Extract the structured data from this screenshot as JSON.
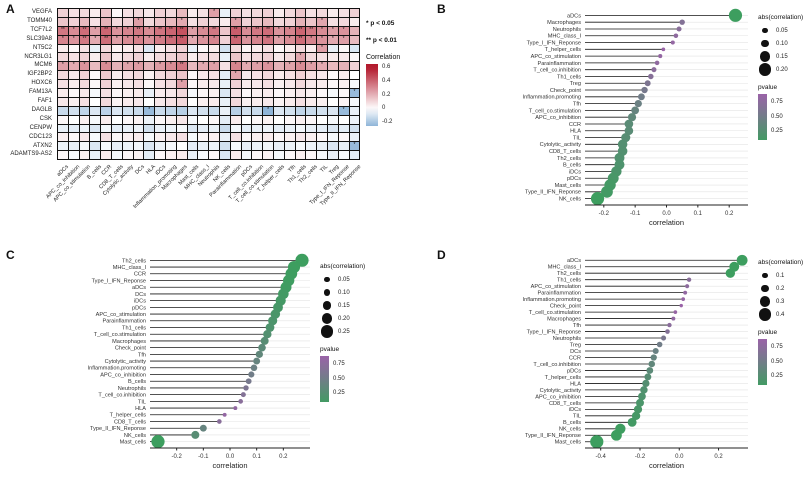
{
  "figure": {
    "panel_labels": {
      "a": "A",
      "b": "B",
      "c": "C",
      "d": "D"
    }
  },
  "chart_data": [
    {
      "id": "A",
      "type": "heatmap",
      "genes": [
        "VEGFA",
        "TOMM40",
        "TCF7L2",
        "SLC39A8",
        "NT5C2",
        "NCR3LG1",
        "MCM6",
        "IGF2BP2",
        "HOXC6",
        "FAM13A",
        "FAF1",
        "DAGLB",
        "CSK",
        "CENPW",
        "CDC123",
        "ATXN2",
        "ADAMTS9-AS2"
      ],
      "columns": [
        "aDCs",
        "APC_co_inhibition",
        "APC_co_stimulation",
        "B_cells",
        "CCR",
        "CD8_T_cells",
        "Cytolytic_activity",
        "DCs",
        "HLA",
        "iDCs",
        "Inflammation_promoting",
        "Macrophages",
        "Mast_cells",
        "MHC_class_I",
        "Neutrophils",
        "NK_cells",
        "Parainflammation",
        "pDCs",
        "T_cell_co.inhibition",
        "T_cell_co.stimulation",
        "T_helper_cells",
        "Tfh",
        "Th1_cells",
        "Th2_cells",
        "TIL",
        "Treg",
        "Type_I_IFN_Reponse",
        "Type_II_IFN_Reponse"
      ],
      "values": [
        [
          0.12,
          0.08,
          0.1,
          0.05,
          0.15,
          0.02,
          0.08,
          0.1,
          0.06,
          0.12,
          0.1,
          0.18,
          0.05,
          0.08,
          0.25,
          -0.05,
          0.12,
          0.08,
          0.1,
          0.12,
          0.05,
          0.1,
          0.15,
          0.08,
          0.1,
          0.05,
          0.08,
          0.12
        ],
        [
          0.15,
          0.12,
          0.18,
          0.08,
          0.2,
          0.1,
          0.12,
          0.25,
          0.1,
          0.15,
          0.18,
          0.22,
          0.08,
          0.12,
          0.1,
          0.05,
          0.25,
          0.12,
          0.15,
          0.18,
          0.1,
          0.12,
          0.2,
          0.15,
          0.23,
          0.08,
          0.1,
          0.05
        ],
        [
          0.35,
          0.3,
          0.38,
          0.25,
          0.4,
          0.28,
          0.32,
          0.35,
          0.3,
          0.36,
          0.4,
          0.45,
          0.25,
          0.3,
          0.35,
          0.15,
          0.42,
          0.3,
          0.35,
          0.38,
          0.28,
          0.32,
          0.4,
          0.35,
          0.3,
          0.25,
          0.28,
          0.2
        ],
        [
          0.32,
          0.28,
          0.35,
          0.22,
          0.38,
          0.25,
          0.3,
          0.33,
          0.28,
          0.34,
          0.38,
          0.42,
          0.22,
          0.28,
          0.32,
          0.12,
          0.4,
          0.28,
          0.32,
          0.36,
          0.25,
          0.3,
          0.38,
          0.32,
          0.28,
          0.22,
          0.25,
          0.18
        ],
        [
          0.05,
          0.02,
          0.08,
          -0.05,
          0.1,
          0.03,
          0.05,
          0.08,
          -0.08,
          0.05,
          0.08,
          0.12,
          -0.05,
          0.02,
          0.05,
          -0.1,
          0.1,
          0.03,
          0.05,
          0.08,
          0.02,
          0.05,
          0.1,
          0.05,
          0.25,
          -0.05,
          0.02,
          -0.08
        ],
        [
          0.1,
          0.08,
          0.12,
          0.05,
          0.15,
          0.06,
          0.1,
          0.12,
          0.05,
          0.1,
          0.12,
          0.15,
          0.05,
          0.08,
          0.1,
          -0.05,
          0.15,
          0.08,
          0.1,
          0.12,
          0.06,
          0.1,
          0.23,
          0.1,
          0.08,
          0.05,
          0.06,
          0.02
        ],
        [
          0.25,
          0.22,
          0.28,
          0.18,
          0.3,
          0.2,
          0.24,
          0.26,
          0.2,
          0.26,
          0.3,
          0.35,
          0.18,
          0.22,
          0.25,
          0.08,
          0.32,
          0.22,
          0.25,
          0.28,
          0.2,
          0.24,
          0.3,
          0.25,
          0.22,
          0.18,
          0.2,
          0.12
        ],
        [
          0.1,
          0.06,
          0.12,
          0.02,
          0.14,
          0.05,
          0.08,
          0.1,
          0.04,
          0.1,
          0.12,
          0.15,
          0.02,
          0.06,
          0.08,
          -0.06,
          0.23,
          0.06,
          0.08,
          0.1,
          0.05,
          0.08,
          0.12,
          0.08,
          0.06,
          0.02,
          0.05,
          0.0
        ],
        [
          0.08,
          0.05,
          0.1,
          0.02,
          0.12,
          0.04,
          0.06,
          0.08,
          0.02,
          0.08,
          0.1,
          0.25,
          0.02,
          0.05,
          0.06,
          -0.05,
          0.12,
          0.05,
          0.06,
          0.08,
          0.04,
          0.06,
          0.1,
          0.06,
          0.05,
          0.02,
          0.04,
          -0.02
        ],
        [
          0.05,
          0.02,
          0.06,
          -0.02,
          0.08,
          0.02,
          0.04,
          0.05,
          -0.05,
          0.05,
          0.06,
          0.1,
          -0.02,
          0.02,
          0.04,
          -0.08,
          0.08,
          0.02,
          0.04,
          0.05,
          0.02,
          0.04,
          0.06,
          0.04,
          0.02,
          -0.02,
          0.02,
          -0.23
        ],
        [
          0.06,
          0.04,
          0.08,
          0.0,
          0.1,
          0.03,
          0.05,
          0.06,
          0.0,
          0.06,
          0.08,
          0.1,
          0.0,
          0.04,
          0.05,
          -0.05,
          0.1,
          0.04,
          0.05,
          0.06,
          0.03,
          0.05,
          0.08,
          0.05,
          0.04,
          0.0,
          0.03,
          -0.02
        ],
        [
          -0.12,
          -0.1,
          -0.14,
          -0.08,
          -0.15,
          -0.08,
          -0.1,
          -0.12,
          -0.23,
          -0.12,
          -0.14,
          -0.16,
          -0.08,
          -0.1,
          -0.12,
          -0.05,
          -0.16,
          -0.1,
          -0.12,
          -0.25,
          -0.08,
          -0.1,
          -0.14,
          -0.12,
          -0.1,
          -0.08,
          -0.23,
          -0.05
        ],
        [
          0.02,
          0.0,
          0.04,
          -0.02,
          0.05,
          0.0,
          0.02,
          0.03,
          -0.04,
          0.02,
          0.04,
          0.06,
          -0.02,
          0.0,
          0.02,
          -0.06,
          0.05,
          0.0,
          0.02,
          0.03,
          0.0,
          0.02,
          0.04,
          0.02,
          0.0,
          -0.02,
          0.0,
          -0.04
        ],
        [
          -0.05,
          -0.06,
          -0.04,
          -0.08,
          -0.03,
          -0.06,
          -0.05,
          -0.04,
          -0.1,
          -0.05,
          -0.04,
          -0.02,
          -0.08,
          -0.06,
          -0.05,
          -0.12,
          -0.03,
          -0.06,
          -0.05,
          -0.04,
          -0.06,
          -0.05,
          -0.03,
          -0.05,
          -0.06,
          -0.08,
          -0.06,
          -0.1
        ],
        [
          0.04,
          0.02,
          0.06,
          -0.02,
          0.08,
          0.02,
          0.04,
          0.05,
          -0.02,
          0.04,
          0.06,
          0.08,
          -0.02,
          0.02,
          0.04,
          -0.05,
          0.08,
          0.02,
          0.04,
          0.05,
          0.02,
          0.04,
          0.06,
          0.04,
          0.02,
          -0.02,
          0.02,
          -0.05
        ],
        [
          -0.04,
          -0.05,
          -0.02,
          -0.08,
          -0.02,
          -0.05,
          -0.04,
          -0.03,
          -0.08,
          -0.04,
          -0.02,
          0.0,
          -0.06,
          -0.05,
          -0.04,
          -0.1,
          -0.02,
          -0.05,
          -0.04,
          -0.03,
          -0.05,
          -0.04,
          -0.02,
          -0.04,
          -0.05,
          -0.08,
          -0.05,
          -0.23
        ],
        [
          0.02,
          -0.02,
          0.04,
          -0.05,
          0.05,
          -0.02,
          0.02,
          0.03,
          -0.06,
          0.02,
          0.04,
          0.05,
          -0.05,
          -0.02,
          0.02,
          -0.08,
          0.05,
          -0.02,
          0.02,
          0.03,
          -0.02,
          0.02,
          0.04,
          0.02,
          -0.02,
          -0.05,
          -0.02,
          -0.06
        ]
      ],
      "significance": {
        "one_star_label": "* p < 0.05",
        "two_star_label": "** p < 0.01",
        "one_star_abs_threshold": 0.22,
        "two_star_abs_threshold": 0.35
      },
      "legend": {
        "title": "Correlation",
        "tick_values": [
          0.6,
          0.4,
          0.2,
          0,
          -0.2
        ],
        "domain_top": 0.65,
        "domain_bottom": -0.25,
        "max_color": "#b2182b",
        "min_color": "#6fa0cd"
      }
    },
    {
      "id": "B",
      "type": "lollipop",
      "xlabel": "correlation",
      "x_domain": [
        -0.26,
        0.26
      ],
      "x_ticks": [
        -0.2,
        -0.1,
        0,
        0.1,
        0.2
      ],
      "size_legend_title": "abs(correlation)",
      "size_legend_values": [
        0.05,
        0.1,
        0.15,
        0.2
      ],
      "size_legend_decimals": 2,
      "pvalue_legend_title": "pvalue",
      "pvalue_ticks": [
        0.75,
        0.5,
        0.25
      ],
      "items": [
        [
          "aDCs",
          0.22,
          0.05
        ],
        [
          "Macrophages",
          0.05,
          0.65
        ],
        [
          "Neutrophils",
          0.04,
          0.7
        ],
        [
          "MHC_class_I",
          0.03,
          0.75
        ],
        [
          "Type_I_IFN_Reponse",
          0.02,
          0.8
        ],
        [
          "T_helper_cells",
          -0.01,
          0.85
        ],
        [
          "APC_co_stimulation",
          -0.02,
          0.8
        ],
        [
          "Parainflammation",
          -0.03,
          0.76
        ],
        [
          "T_cell_co.inhibition",
          -0.04,
          0.72
        ],
        [
          "Th1_cells",
          -0.05,
          0.68
        ],
        [
          "Treg",
          -0.06,
          0.6
        ],
        [
          "Check_point",
          -0.07,
          0.55
        ],
        [
          "Inflammation.promoting",
          -0.08,
          0.5
        ],
        [
          "Tfh",
          -0.09,
          0.45
        ],
        [
          "T_cell_co.stimulation",
          -0.1,
          0.4
        ],
        [
          "APC_co_inhibition",
          -0.11,
          0.35
        ],
        [
          "CCR",
          -0.12,
          0.3
        ],
        [
          "HLA",
          -0.12,
          0.3
        ],
        [
          "TIL",
          -0.13,
          0.28
        ],
        [
          "Cytolytic_activity",
          -0.14,
          0.25
        ],
        [
          "CD8_T_cells",
          -0.14,
          0.24
        ],
        [
          "Th2_cells",
          -0.15,
          0.22
        ],
        [
          "B_cells",
          -0.15,
          0.2
        ],
        [
          "iDCs",
          -0.16,
          0.18
        ],
        [
          "pDCs",
          -0.17,
          0.15
        ],
        [
          "Mast_cells",
          -0.18,
          0.12
        ],
        [
          "Type_II_IFN_Reponse",
          -0.19,
          0.1
        ],
        [
          "NK_cells",
          -0.22,
          0.05
        ]
      ]
    },
    {
      "id": "C",
      "type": "lollipop",
      "xlabel": "correlation",
      "x_domain": [
        -0.3,
        0.3
      ],
      "x_ticks": [
        -0.2,
        -0.1,
        0,
        0.1,
        0.2
      ],
      "size_legend_title": "abs(correlation)",
      "size_legend_values": [
        0.05,
        0.1,
        0.15,
        0.2,
        0.25
      ],
      "size_legend_decimals": 2,
      "pvalue_legend_title": "pvalue",
      "pvalue_ticks": [
        0.75,
        0.5,
        0.25
      ],
      "items": [
        [
          "Th2_cells",
          0.27,
          0.03
        ],
        [
          "MHC_class_I",
          0.24,
          0.05
        ],
        [
          "CCR",
          0.23,
          0.06
        ],
        [
          "Type_I_IFN_Reponse",
          0.22,
          0.07
        ],
        [
          "aDCs",
          0.21,
          0.08
        ],
        [
          "DCs",
          0.2,
          0.1
        ],
        [
          "iDCs",
          0.19,
          0.12
        ],
        [
          "pDCs",
          0.18,
          0.14
        ],
        [
          "APC_co_stimulation",
          0.17,
          0.16
        ],
        [
          "Parainflammation",
          0.16,
          0.18
        ],
        [
          "Th1_cells",
          0.15,
          0.2
        ],
        [
          "T_cell_co.stimulation",
          0.14,
          0.24
        ],
        [
          "Macrophages",
          0.13,
          0.28
        ],
        [
          "Check_point",
          0.12,
          0.32
        ],
        [
          "Tfh",
          0.11,
          0.36
        ],
        [
          "Cytolytic_activity",
          0.1,
          0.4
        ],
        [
          "Inflammation.promoting",
          0.09,
          0.45
        ],
        [
          "APC_co_inhibition",
          0.08,
          0.5
        ],
        [
          "B_cells",
          0.07,
          0.55
        ],
        [
          "Neutrophils",
          0.06,
          0.6
        ],
        [
          "T_cell_co.inhibition",
          0.05,
          0.65
        ],
        [
          "TIL",
          0.04,
          0.7
        ],
        [
          "HLA",
          0.02,
          0.78
        ],
        [
          "T_helper_cells",
          -0.02,
          0.8
        ],
        [
          "CD8_T_cells",
          -0.04,
          0.7
        ],
        [
          "Type_II_IFN_Reponse",
          -0.1,
          0.4
        ],
        [
          "NK_cells",
          -0.13,
          0.28
        ],
        [
          "Mast_cells",
          -0.27,
          0.03
        ]
      ]
    },
    {
      "id": "D",
      "type": "lollipop",
      "xlabel": "correlation",
      "x_domain": [
        -0.48,
        0.35
      ],
      "x_ticks": [
        -0.4,
        -0.2,
        0,
        0.2
      ],
      "size_legend_title": "abs(correlation)",
      "size_legend_values": [
        0.1,
        0.2,
        0.3,
        0.4
      ],
      "size_legend_decimals": 1,
      "pvalue_legend_title": "pvalue",
      "pvalue_ticks": [
        0.75,
        0.5,
        0.25
      ],
      "items": [
        [
          "aDCs",
          0.32,
          0.02
        ],
        [
          "MHC_class_I",
          0.28,
          0.04
        ],
        [
          "Th2_cells",
          0.26,
          0.05
        ],
        [
          "Th1_cells",
          0.05,
          0.7
        ],
        [
          "APC_co_stimulation",
          0.04,
          0.74
        ],
        [
          "Parainflammation",
          0.03,
          0.78
        ],
        [
          "Inflammation.promoting",
          0.02,
          0.82
        ],
        [
          "Check_point",
          0.01,
          0.85
        ],
        [
          "T_cell_co.stimulation",
          -0.02,
          0.82
        ],
        [
          "Macrophages",
          -0.03,
          0.78
        ],
        [
          "Tfh",
          -0.05,
          0.72
        ],
        [
          "Type_I_IFN_Reponse",
          -0.06,
          0.66
        ],
        [
          "Neutrophils",
          -0.08,
          0.58
        ],
        [
          "Treg",
          -0.1,
          0.5
        ],
        [
          "DCs",
          -0.12,
          0.44
        ],
        [
          "CCR",
          -0.13,
          0.4
        ],
        [
          "T_cell_co.inhibition",
          -0.14,
          0.36
        ],
        [
          "pDCs",
          -0.15,
          0.32
        ],
        [
          "T_helper_cells",
          -0.16,
          0.28
        ],
        [
          "HLA",
          -0.17,
          0.25
        ],
        [
          "Cytolytic_activity",
          -0.18,
          0.22
        ],
        [
          "APC_co_inhibition",
          -0.19,
          0.2
        ],
        [
          "CD8_T_cells",
          -0.2,
          0.17
        ],
        [
          "iDCs",
          -0.21,
          0.15
        ],
        [
          "TIL",
          -0.22,
          0.13
        ],
        [
          "B_cells",
          -0.24,
          0.1
        ],
        [
          "NK_cells",
          -0.3,
          0.06
        ],
        [
          "Type_II_IFN_Reponse",
          -0.32,
          0.05
        ],
        [
          "Mast_cells",
          -0.42,
          0.01
        ]
      ]
    }
  ],
  "colors": {
    "pvalue_low": "#3d9e5f",
    "pvalue_high": "#9a63a8",
    "stem": "#1a1a1a",
    "gridline": "#e3e3e3"
  }
}
